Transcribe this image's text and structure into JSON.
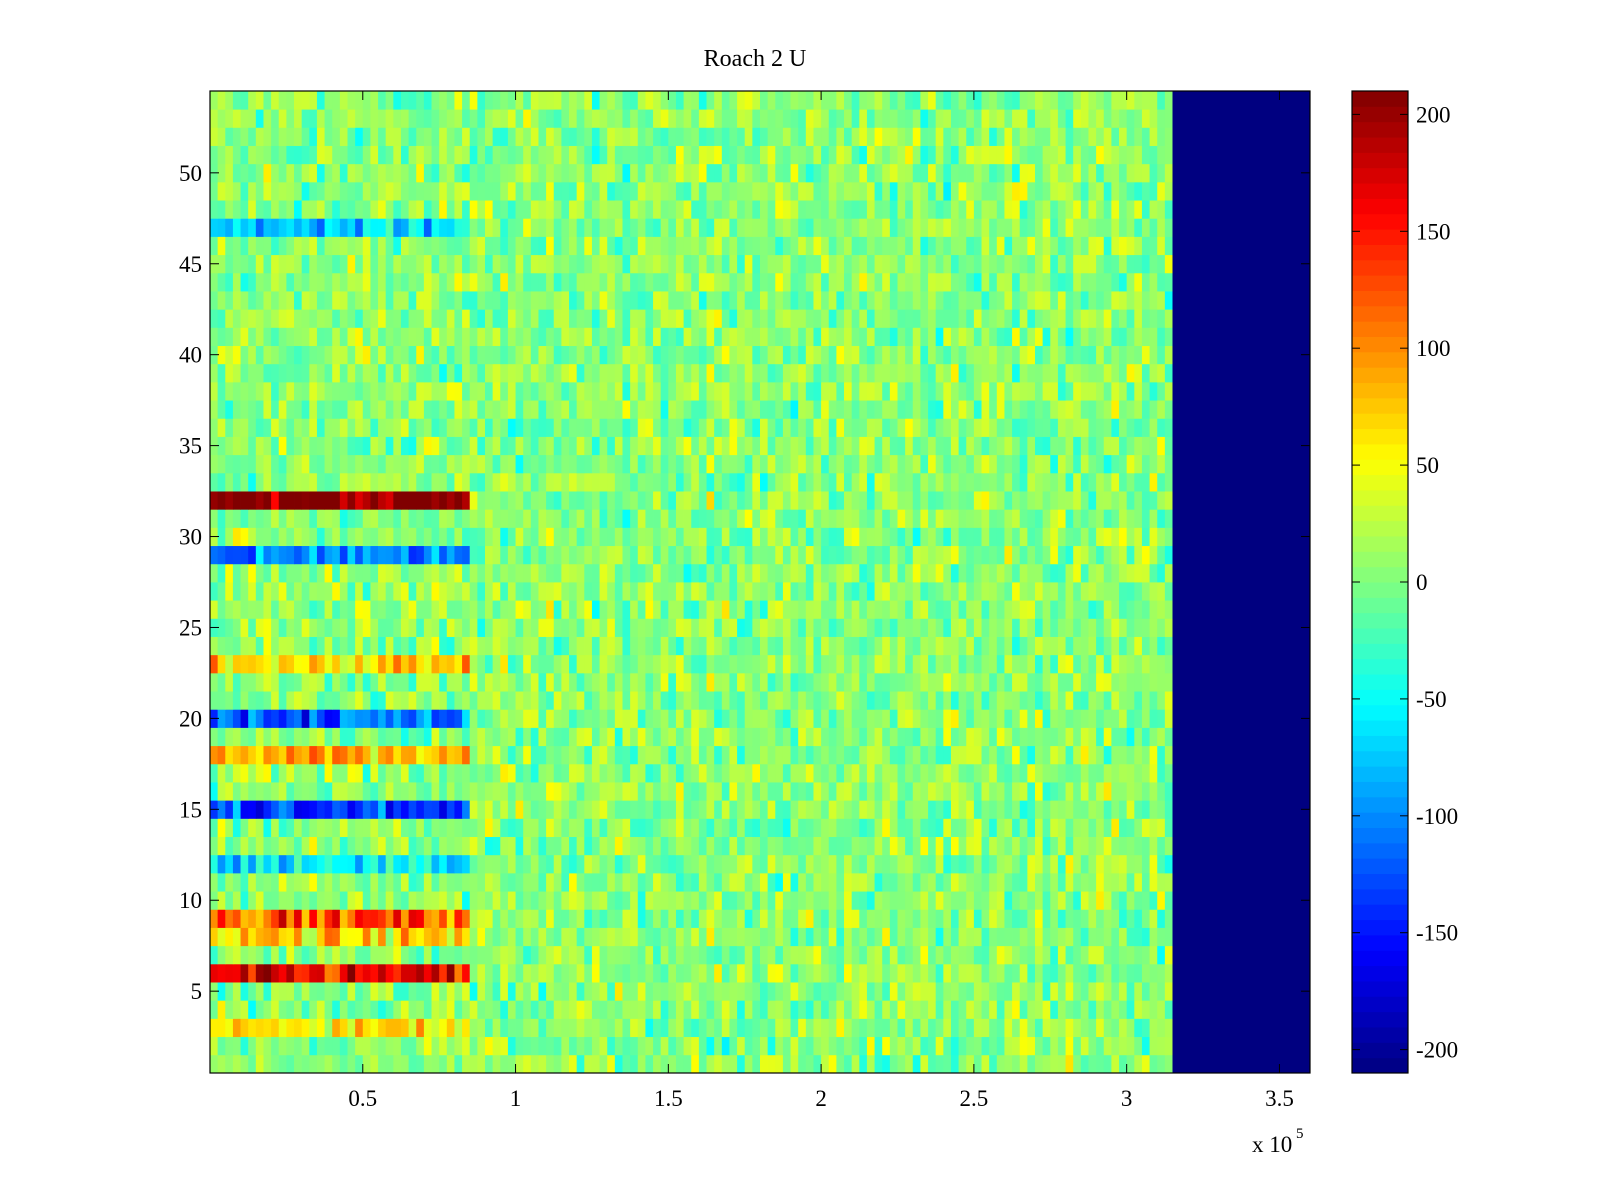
{
  "chart_data": {
    "type": "heatmap",
    "title": "Roach 2 U",
    "xlabel": "",
    "ylabel": "",
    "x_multiplier_label": "x 10",
    "x_multiplier_exponent": "5",
    "xlim": [
      0,
      360000
    ],
    "ylim": [
      0.5,
      54.5
    ],
    "x_ticks": [
      50000,
      100000,
      150000,
      200000,
      250000,
      300000,
      350000
    ],
    "x_tick_labels": [
      "0.5",
      "1",
      "1.5",
      "2",
      "2.5",
      "3",
      "3.5"
    ],
    "y_ticks": [
      5,
      10,
      15,
      20,
      25,
      30,
      35,
      40,
      45,
      50
    ],
    "y_tick_labels": [
      "5",
      "10",
      "15",
      "20",
      "25",
      "30",
      "35",
      "40",
      "45",
      "50"
    ],
    "rows": 54,
    "data_end_x": 315000,
    "active_block_end_x": 85000,
    "fill_value_after_end": -210,
    "background_mean": 5,
    "background_noise": 22,
    "row_offsets_early_segment": [
      {
        "row": 32,
        "value": 210
      },
      {
        "row": 29,
        "value": -110
      },
      {
        "row": 47,
        "value": -75
      },
      {
        "row": 23,
        "value": 70
      },
      {
        "row": 20,
        "value": -120
      },
      {
        "row": 18,
        "value": 85
      },
      {
        "row": 15,
        "value": -130
      },
      {
        "row": 9,
        "value": 120
      },
      {
        "row": 8,
        "value": 60
      },
      {
        "row": 6,
        "value": 150
      },
      {
        "row": 12,
        "value": -60
      },
      {
        "row": 3,
        "value": 55
      }
    ],
    "colorbar": {
      "colormap": "jet",
      "clim": [
        -210,
        210
      ],
      "ticks": [
        -200,
        -150,
        -100,
        -50,
        0,
        50,
        100,
        150,
        200
      ],
      "tick_labels": [
        "-200",
        "-150",
        "-100",
        "-50",
        "0",
        "50",
        "100",
        "150",
        "200"
      ]
    }
  }
}
